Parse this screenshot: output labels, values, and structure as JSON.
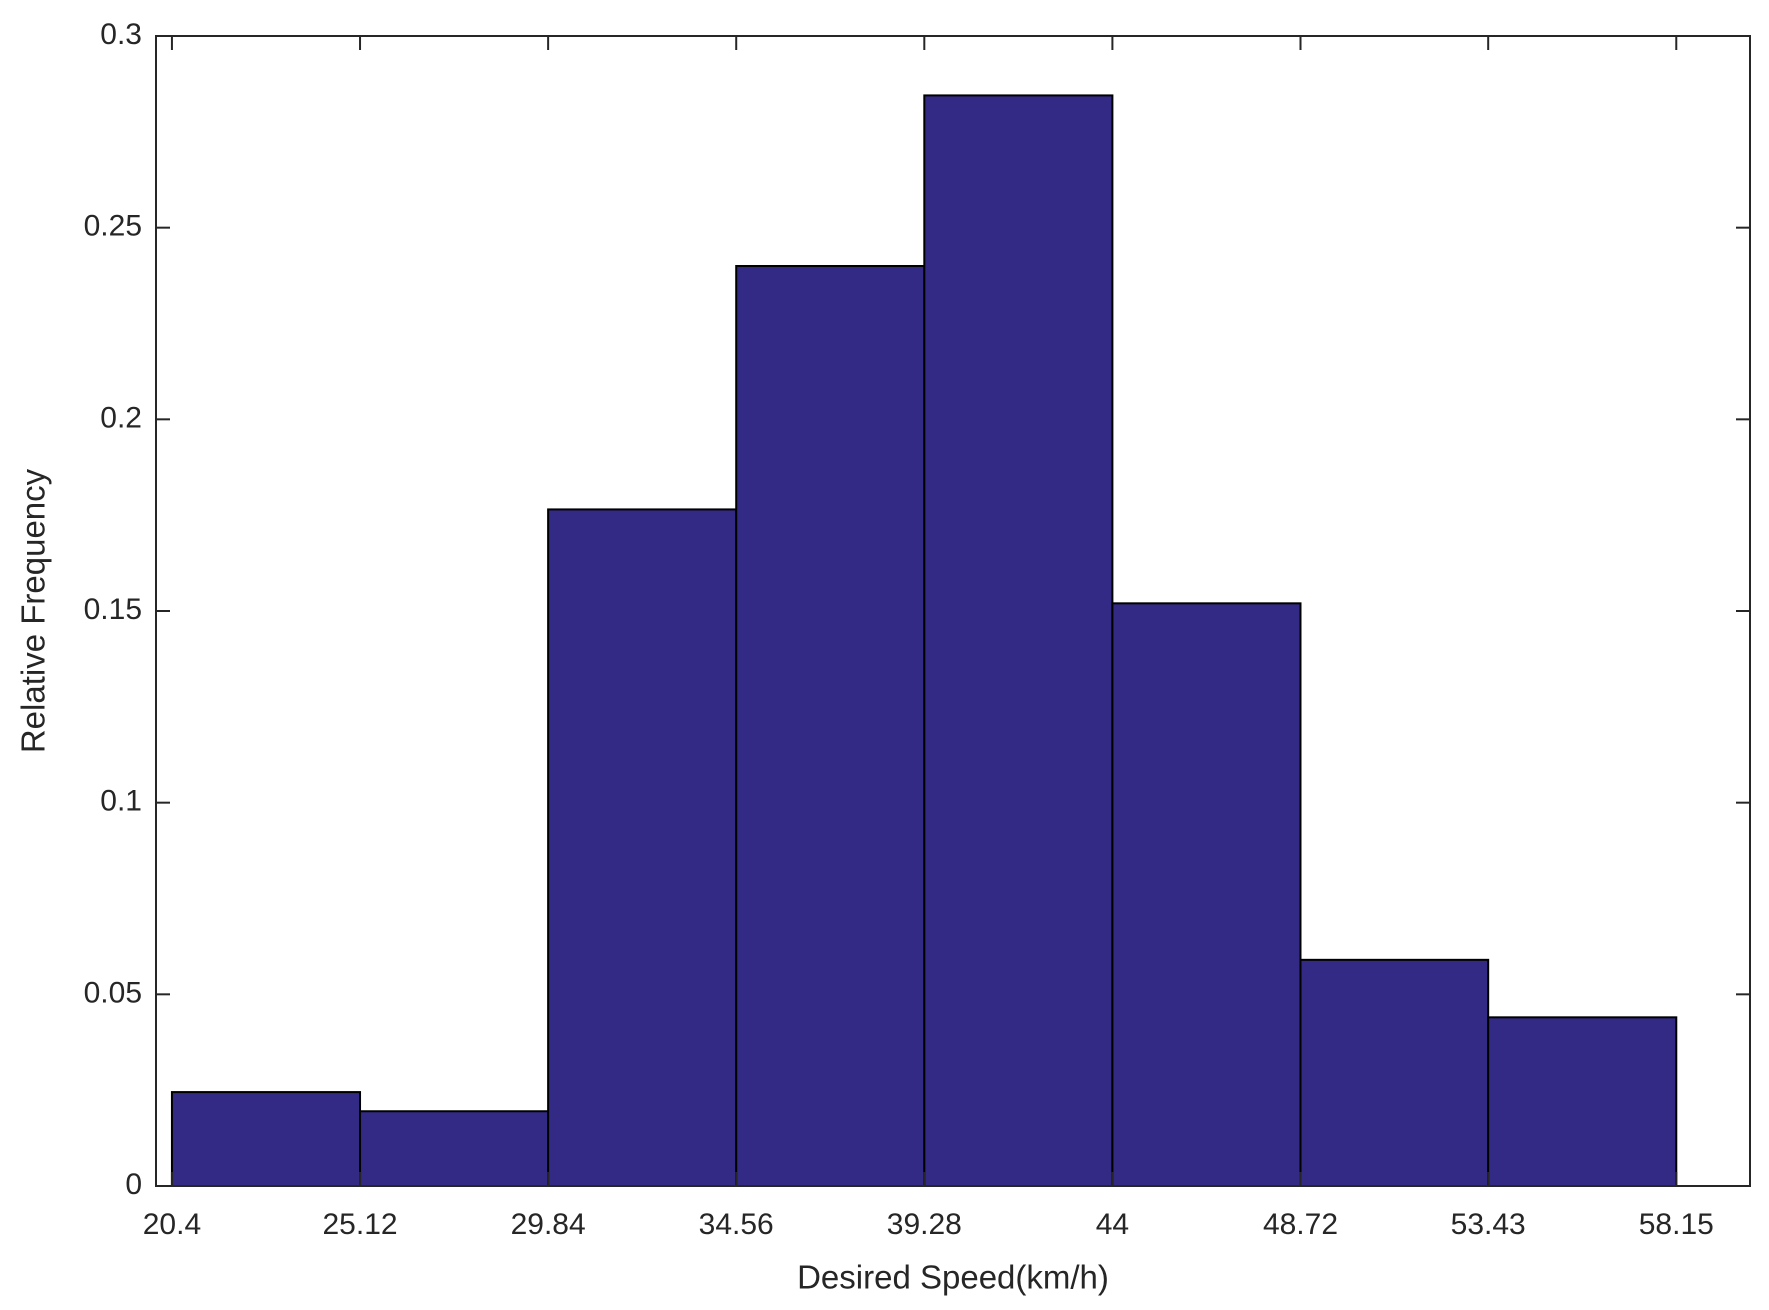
{
  "chart_data": {
    "type": "histogram",
    "x_label": "Desired Speed(km/h)",
    "y_label": "Relative Frequency",
    "bins": [
      20.4,
      25.12,
      29.84,
      34.56,
      39.28,
      44,
      48.72,
      53.43,
      58.15
    ],
    "values": [
      0.0245,
      0.0195,
      0.1765,
      0.24,
      0.2845,
      0.152,
      0.059,
      0.044
    ],
    "color": "#332a85",
    "xlim": [
      20,
      60
    ],
    "xticks": [
      20.4,
      25.12,
      29.84,
      34.56,
      39.28,
      44,
      48.72,
      53.43,
      58.15
    ],
    "ylim": [
      0,
      0.3
    ],
    "yticks": [
      0,
      0.05,
      0.1,
      0.15,
      0.2,
      0.25,
      0.3
    ],
    "grid": false
  }
}
